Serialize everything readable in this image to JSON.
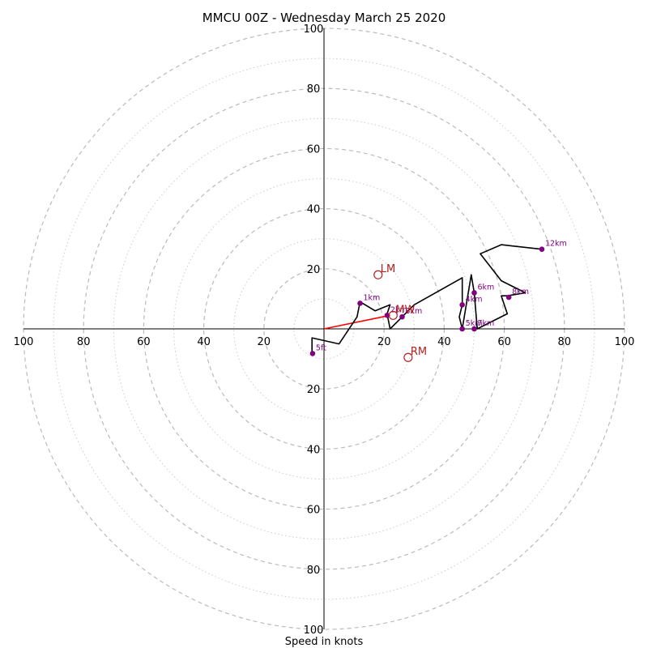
{
  "chart_data": {
    "type": "hodograph",
    "title": "MMCU 00Z - Wednesday March 25 2020",
    "xlabel": "Speed in knots",
    "ylabel": "",
    "range": [
      0,
      100
    ],
    "ring_step_major": 20,
    "ring_step_minor": 10,
    "tick_labels": [
      "20",
      "40",
      "60",
      "80",
      "100"
    ],
    "colors": {
      "trace": "#000000",
      "height_marker": "#800080",
      "storm_motion": "#b22222",
      "shear_vector": "#ff0000",
      "grid": "#bbbbbb",
      "axis": "#000000"
    },
    "trace": [
      {
        "u": -4,
        "v": -8
      },
      {
        "u": -4,
        "v": -3
      },
      {
        "u": 5,
        "v": -5
      },
      {
        "u": 11,
        "v": 4
      },
      {
        "u": 12,
        "v": 9
      },
      {
        "u": 17,
        "v": 6
      },
      {
        "u": 22,
        "v": 8
      },
      {
        "u": 21,
        "v": 5
      },
      {
        "u": 22,
        "v": 0
      },
      {
        "u": 25,
        "v": 3
      },
      {
        "u": 26,
        "v": 4
      },
      {
        "u": 30,
        "v": 8
      },
      {
        "u": 46,
        "v": 17
      },
      {
        "u": 46,
        "v": 8
      },
      {
        "u": 45,
        "v": 4
      },
      {
        "u": 46,
        "v": 0
      },
      {
        "u": 49,
        "v": 18
      },
      {
        "u": 50,
        "v": 12
      },
      {
        "u": 51,
        "v": 0
      },
      {
        "u": 61,
        "v": 5
      },
      {
        "u": 59,
        "v": 11
      },
      {
        "u": 61,
        "v": 11
      },
      {
        "u": 67,
        "v": 12
      },
      {
        "u": 59,
        "v": 16
      },
      {
        "u": 52,
        "v": 25
      },
      {
        "u": 59,
        "v": 28
      },
      {
        "u": 72.5,
        "v": 26.5
      }
    ],
    "height_markers": [
      {
        "label": "5ft",
        "u": -3.8,
        "v": -8.2
      },
      {
        "label": "1km",
        "u": 12,
        "v": 8.5
      },
      {
        "label": "2km",
        "u": 21,
        "v": 4.5
      },
      {
        "label": "3km",
        "u": 26,
        "v": 4
      },
      {
        "label": "4km",
        "u": 46,
        "v": 8
      },
      {
        "label": "5km",
        "u": 46,
        "v": 0
      },
      {
        "label": "6km",
        "u": 50,
        "v": 12
      },
      {
        "label": "7km",
        "u": 50,
        "v": 0
      },
      {
        "label": "8km",
        "u": 61.5,
        "v": 10.5
      },
      {
        "label": "12km",
        "u": 72.5,
        "v": 26.5
      }
    ],
    "storm_motion": [
      {
        "label": "LM",
        "u": 18,
        "v": 18
      },
      {
        "label": "RM",
        "u": 28,
        "v": -9.5
      },
      {
        "label": "MW",
        "u": 23,
        "v": 4.5
      }
    ],
    "shear_vector": {
      "from_u": 0,
      "from_v": 0,
      "to_u": 22,
      "to_v": 4.5
    }
  }
}
